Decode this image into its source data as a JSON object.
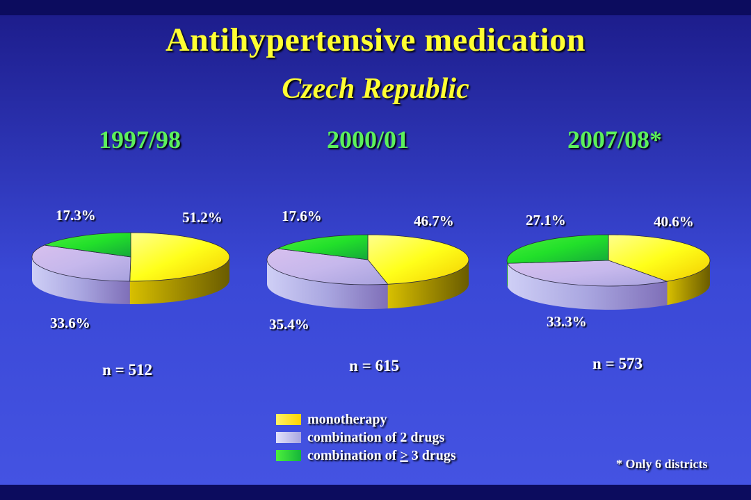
{
  "slide": {
    "title": "Antihypertensive medication",
    "subtitle": "Czech Republic",
    "footnote": "* Only 6 districts"
  },
  "colors": {
    "background_top": "#1d1d8c",
    "background_bottom": "#4453e2",
    "title": "#ffff33",
    "period_label": "#5cf05c",
    "text": "#ffffff"
  },
  "chart_data": [
    {
      "type": "pie",
      "title": "1997/98",
      "n_label": "n = 512",
      "slices": [
        {
          "name": "monotherapy",
          "value": 51.2,
          "label": "51.2%"
        },
        {
          "name": "combination of 2 drugs",
          "value": 33.6,
          "label": "33.6%"
        },
        {
          "name": "combination of > 3 drugs",
          "value": 17.3,
          "label": "17.3%"
        }
      ]
    },
    {
      "type": "pie",
      "title": "2000/01",
      "n_label": "n = 615",
      "slices": [
        {
          "name": "monotherapy",
          "value": 46.7,
          "label": "46.7%"
        },
        {
          "name": "combination of 2 drugs",
          "value": 35.4,
          "label": "35.4%"
        },
        {
          "name": "combination of > 3 drugs",
          "value": 17.6,
          "label": "17.6%"
        }
      ]
    },
    {
      "type": "pie",
      "title": "2007/08*",
      "n_label": "n = 573",
      "slices": [
        {
          "name": "monotherapy",
          "value": 40.6,
          "label": "40.6%"
        },
        {
          "name": "combination of 2 drugs",
          "value": 33.3,
          "label": "33.3%"
        },
        {
          "name": "combination of > 3 drugs",
          "value": 27.1,
          "label": "27.1%"
        }
      ]
    }
  ],
  "legend": {
    "items": [
      {
        "label_pre": "monotherapy",
        "label_ge": "",
        "label_post": "",
        "color": "#ffff00"
      },
      {
        "label_pre": "combination of 2 drugs",
        "label_ge": "",
        "label_post": "",
        "color": "#c8c8f5"
      },
      {
        "label_pre": "combination of ",
        "label_ge": ">",
        "label_post": " 3 drugs",
        "color": "#22e03a"
      }
    ]
  }
}
